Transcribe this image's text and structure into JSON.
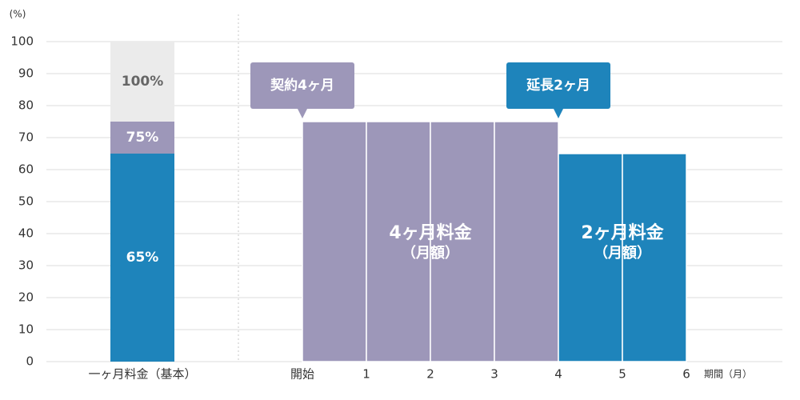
{
  "chart_data": {
    "type": "bar",
    "y_label": "(%)",
    "ylim": [
      0,
      100
    ],
    "yticks": [
      0,
      10,
      20,
      30,
      40,
      50,
      60,
      70,
      80,
      90,
      100
    ],
    "grid": true,
    "base": {
      "category": "一ヶ月料金（基本）",
      "values": [
        100,
        75,
        65
      ],
      "value_labels": [
        "100%",
        "75%",
        "65%"
      ],
      "colors": [
        "#ebebeb",
        "#9d97b9",
        "#1e84bb"
      ],
      "label_colors": [
        "#666666",
        "#ffffff",
        "#ffffff"
      ]
    },
    "period": {
      "x_label": "期間（月）",
      "xlim": [
        0,
        6
      ],
      "xticks": [
        {
          "value": 0,
          "label": "開始"
        },
        1,
        2,
        3,
        4,
        5,
        6
      ],
      "bins": [
        0,
        1,
        2,
        3,
        4,
        5,
        6
      ],
      "values": [
        75,
        75,
        75,
        75,
        65,
        65
      ],
      "colors": [
        "#9d97b9",
        "#9d97b9",
        "#9d97b9",
        "#9d97b9",
        "#1e84bb",
        "#1e84bb"
      ],
      "callouts": [
        {
          "text": "契約4ヶ月",
          "color": "#9d97b9"
        },
        {
          "text": "延長2ヶ月",
          "color": "#1e84bb"
        }
      ],
      "bar_texts": [
        {
          "lines": [
            "4ヶ月料金",
            "（月額）"
          ]
        },
        {
          "lines": [
            "2ヶ月料金",
            "（月額）"
          ]
        }
      ]
    }
  }
}
